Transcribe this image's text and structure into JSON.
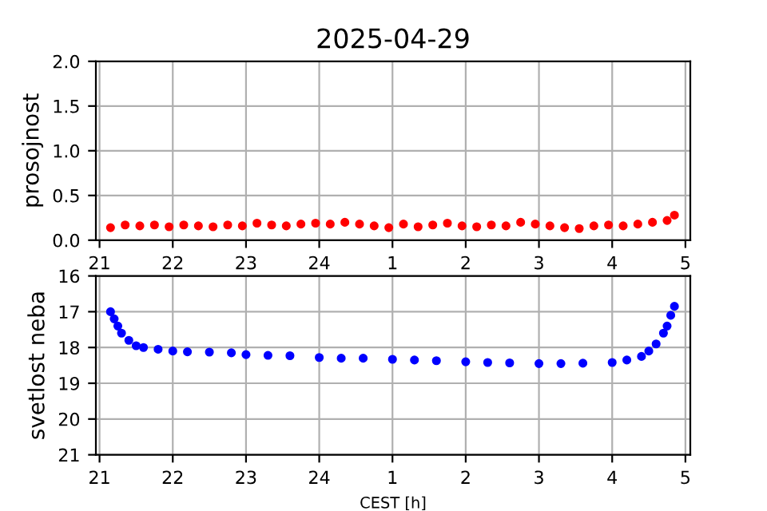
{
  "chart_data": [
    {
      "type": "scatter",
      "title": "2025-04-29",
      "ylabel": "prosojnost",
      "marker": "circle",
      "grid": true,
      "xlim": [
        "2025-04-29T20:57",
        "2025-04-30T05:04"
      ],
      "xticks": [
        {
          "value": "2025-04-29T21:00",
          "label": "21"
        },
        {
          "value": "2025-04-29T22:00",
          "label": "22"
        },
        {
          "value": "2025-04-29T23:00",
          "label": "23"
        },
        {
          "value": "2025-04-30T00:00",
          "label": "24"
        },
        {
          "value": "2025-04-30T01:00",
          "label": "1"
        },
        {
          "value": "2025-04-30T02:00",
          "label": "2"
        },
        {
          "value": "2025-04-30T03:00",
          "label": "3"
        },
        {
          "value": "2025-04-30T04:00",
          "label": "4"
        },
        {
          "value": "2025-04-30T05:00",
          "label": "5"
        }
      ],
      "ylim": [
        0,
        2
      ],
      "yticks": [
        {
          "value": 0,
          "label": "0.0"
        },
        {
          "value": 0.5,
          "label": "0.5"
        },
        {
          "value": 1,
          "label": "1.0"
        },
        {
          "value": 1.5,
          "label": "1.5"
        },
        {
          "value": 2,
          "label": "2.0"
        }
      ],
      "series": [
        {
          "color": "#ff0000",
          "x": [
            "2025-04-29T21:09",
            "2025-04-29T21:21",
            "2025-04-29T21:33",
            "2025-04-29T21:45",
            "2025-04-29T21:57",
            "2025-04-29T22:09",
            "2025-04-29T22:21",
            "2025-04-29T22:33",
            "2025-04-29T22:45",
            "2025-04-29T22:57",
            "2025-04-29T23:09",
            "2025-04-29T23:21",
            "2025-04-29T23:33",
            "2025-04-29T23:45",
            "2025-04-29T23:57",
            "2025-04-30T00:09",
            "2025-04-30T00:21",
            "2025-04-30T00:33",
            "2025-04-30T00:45",
            "2025-04-30T00:57",
            "2025-04-30T01:09",
            "2025-04-30T01:21",
            "2025-04-30T01:33",
            "2025-04-30T01:45",
            "2025-04-30T01:57",
            "2025-04-30T02:09",
            "2025-04-30T02:21",
            "2025-04-30T02:33",
            "2025-04-30T02:45",
            "2025-04-30T02:57",
            "2025-04-30T03:09",
            "2025-04-30T03:21",
            "2025-04-30T03:33",
            "2025-04-30T03:45",
            "2025-04-30T03:57",
            "2025-04-30T04:09",
            "2025-04-30T04:21",
            "2025-04-30T04:33",
            "2025-04-30T04:45",
            "2025-04-30T04:51"
          ],
          "values": [
            0.14,
            0.17,
            0.16,
            0.17,
            0.15,
            0.17,
            0.16,
            0.15,
            0.17,
            0.16,
            0.19,
            0.17,
            0.16,
            0.18,
            0.19,
            0.18,
            0.2,
            0.18,
            0.16,
            0.14,
            0.18,
            0.15,
            0.17,
            0.19,
            0.16,
            0.15,
            0.17,
            0.16,
            0.2,
            0.18,
            0.16,
            0.14,
            0.13,
            0.16,
            0.17,
            0.16,
            0.18,
            0.2,
            0.22,
            0.28
          ]
        }
      ]
    },
    {
      "type": "scatter",
      "ylabel": "svetlost neba",
      "xlabel": "CEST [h]",
      "marker": "circle",
      "grid": true,
      "xlim": [
        "2025-04-29T20:57",
        "2025-04-30T05:04"
      ],
      "xticks": [
        {
          "value": "2025-04-29T21:00",
          "label": "21"
        },
        {
          "value": "2025-04-29T22:00",
          "label": "22"
        },
        {
          "value": "2025-04-29T23:00",
          "label": "23"
        },
        {
          "value": "2025-04-30T00:00",
          "label": "24"
        },
        {
          "value": "2025-04-30T01:00",
          "label": "1"
        },
        {
          "value": "2025-04-30T02:00",
          "label": "2"
        },
        {
          "value": "2025-04-30T03:00",
          "label": "3"
        },
        {
          "value": "2025-04-30T04:00",
          "label": "4"
        },
        {
          "value": "2025-04-30T05:00",
          "label": "5"
        }
      ],
      "ylim": [
        21,
        16
      ],
      "yticks": [
        16,
        17,
        18,
        19,
        20,
        21
      ],
      "series": [
        {
          "color": "#0000ff",
          "x": [
            "2025-04-29T21:09",
            "2025-04-29T21:12",
            "2025-04-29T21:15",
            "2025-04-29T21:18",
            "2025-04-29T21:24",
            "2025-04-29T21:30",
            "2025-04-29T21:36",
            "2025-04-29T21:48",
            "2025-04-29T22:00",
            "2025-04-29T22:12",
            "2025-04-29T22:30",
            "2025-04-29T22:48",
            "2025-04-29T23:00",
            "2025-04-29T23:18",
            "2025-04-29T23:36",
            "2025-04-30T00:00",
            "2025-04-30T00:18",
            "2025-04-30T00:36",
            "2025-04-30T01:00",
            "2025-04-30T01:18",
            "2025-04-30T01:36",
            "2025-04-30T02:00",
            "2025-04-30T02:18",
            "2025-04-30T02:36",
            "2025-04-30T03:00",
            "2025-04-30T03:18",
            "2025-04-30T03:36",
            "2025-04-30T04:00",
            "2025-04-30T04:12",
            "2025-04-30T04:24",
            "2025-04-30T04:30",
            "2025-04-30T04:36",
            "2025-04-30T04:42",
            "2025-04-30T04:45",
            "2025-04-30T04:48",
            "2025-04-30T04:51"
          ],
          "values": [
            17.0,
            17.2,
            17.4,
            17.6,
            17.8,
            17.95,
            18.0,
            18.05,
            18.1,
            18.12,
            18.13,
            18.15,
            18.2,
            18.22,
            18.23,
            18.28,
            18.3,
            18.3,
            18.33,
            18.35,
            18.37,
            18.4,
            18.42,
            18.43,
            18.45,
            18.45,
            18.44,
            18.42,
            18.35,
            18.25,
            18.1,
            17.9,
            17.6,
            17.4,
            17.1,
            16.85
          ]
        }
      ]
    }
  ]
}
